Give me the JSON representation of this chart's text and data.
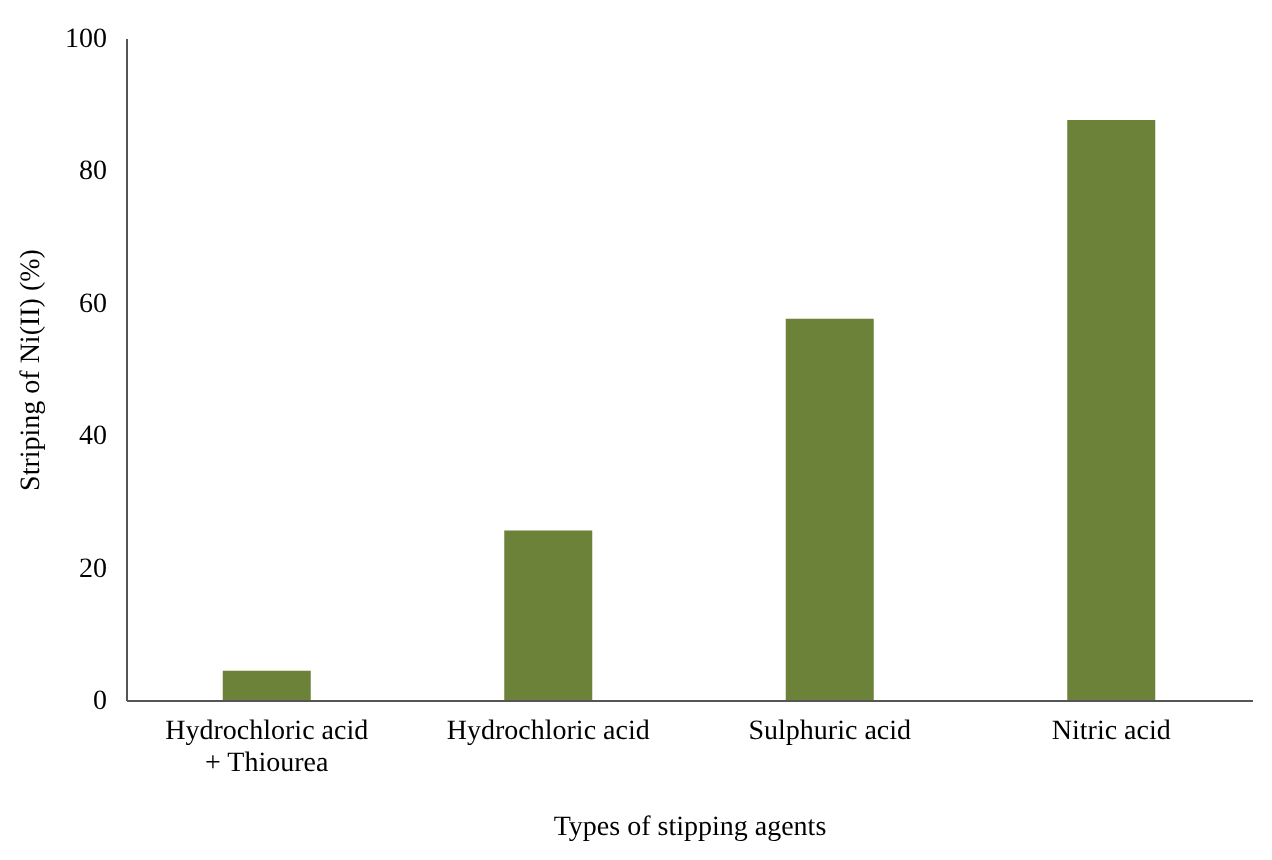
{
  "chart_data": {
    "type": "bar",
    "xlabel": "Types of stipping agents",
    "ylabel": "Striping of Ni(II) (%)",
    "categories": [
      "Hydrochloric acid + Thiourea",
      "Hydrochloric acid",
      "Sulphuric acid",
      "Nitric acid"
    ],
    "values": [
      4.4,
      25.6,
      57.6,
      87.6
    ],
    "color": "#6b8238",
    "ylim": [
      0,
      100
    ],
    "yticks": [
      0,
      20,
      40,
      60,
      80,
      100
    ],
    "grid": false
  }
}
